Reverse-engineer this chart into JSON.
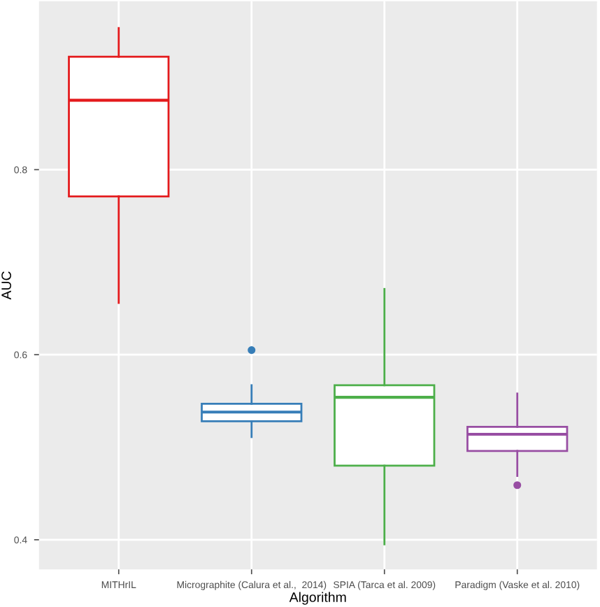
{
  "chart_data": {
    "type": "box",
    "xlabel": "Algorithm",
    "ylabel": "AUC",
    "categories": [
      "MITHrIL",
      "Micrographite (Calura et al.,  2014)",
      "SPIA (Tarca et al. 2009)",
      "Paradigm (Vaske et al. 2010)"
    ],
    "colors": [
      "#e41a1c",
      "#377eb8",
      "#4daf4a",
      "#984ea3"
    ],
    "boxes": [
      {
        "low": 0.656,
        "q1": 0.771,
        "median": 0.875,
        "q3": 0.922,
        "high": 0.953
      },
      {
        "low": 0.511,
        "q1": 0.528,
        "median": 0.538,
        "q3": 0.547,
        "high": 0.567,
        "outliers": [
          0.605
        ]
      },
      {
        "low": 0.395,
        "q1": 0.48,
        "median": 0.554,
        "q3": 0.567,
        "high": 0.671
      },
      {
        "low": 0.469,
        "q1": 0.496,
        "median": 0.514,
        "q3": 0.522,
        "high": 0.558,
        "outliers": [
          0.459
        ]
      }
    ],
    "ylim": [
      0.368,
      0.982
    ],
    "yticks": [
      0.4,
      0.6,
      0.8
    ],
    "grid": true
  }
}
